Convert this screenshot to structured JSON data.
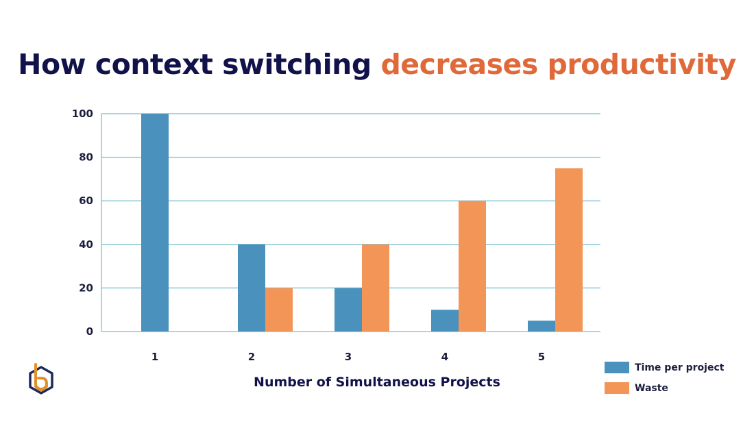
{
  "title": {
    "part1": "How context switching ",
    "part2": "decreases productivity"
  },
  "colors": {
    "title_dark": "#12124a",
    "title_accent": "#e0693a",
    "time_per_project": "#4a92bd",
    "waste": "#f29557",
    "grid": "#8cc8d6",
    "logo_orange": "#e2902b",
    "logo_navy": "#1e2a5a"
  },
  "chart_data": {
    "type": "bar",
    "categories": [
      "1",
      "2",
      "3",
      "4",
      "5"
    ],
    "series": [
      {
        "name": "Time per project",
        "values": [
          100,
          40,
          20,
          10,
          5
        ]
      },
      {
        "name": "Waste",
        "values": [
          0,
          20,
          40,
          60,
          75
        ]
      }
    ],
    "xlabel": "Number of Simultaneous Projects",
    "ylabel": "",
    "ylim": [
      0,
      100
    ],
    "yticks": [
      0,
      20,
      40,
      60,
      80,
      100
    ],
    "grid": true,
    "legend_position": "bottom-right"
  },
  "logo": {
    "icon": "hexagon-logo-icon"
  }
}
